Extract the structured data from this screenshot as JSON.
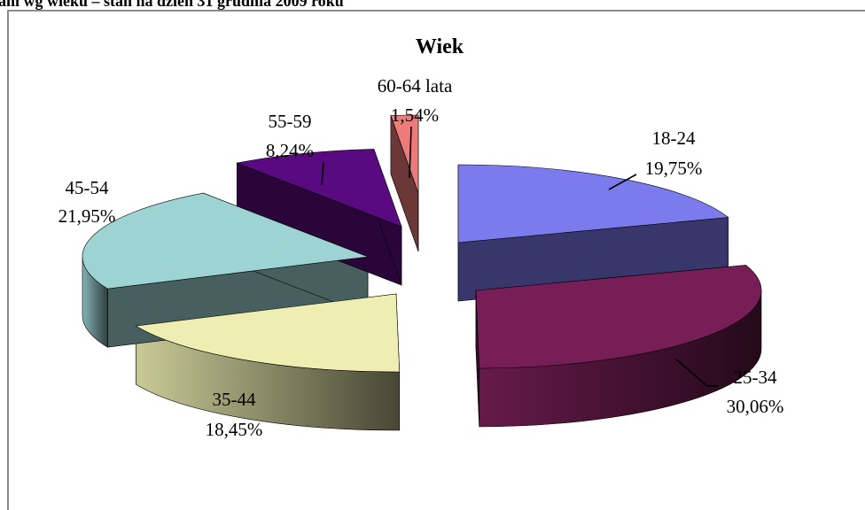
{
  "page": {
    "heading": "ani wg wieku – stan na dzień 31 grudnia 2009 roku"
  },
  "chart_data": {
    "type": "pie",
    "title": "Wiek",
    "exploded": true,
    "three_d": true,
    "slices": [
      {
        "label": "18-24",
        "percent_label": "19,75%",
        "value": 19.75,
        "color": "#7b7bee"
      },
      {
        "label": "25-34",
        "percent_label": "30,06%",
        "value": 30.06,
        "color": "#781e57"
      },
      {
        "label": "35-44",
        "percent_label": "18,45%",
        "value": 18.45,
        "color": "#eeeeb2"
      },
      {
        "label": "45-54",
        "percent_label": "21,95%",
        "value": 21.95,
        "color": "#9dd3d3"
      },
      {
        "label": "55-59",
        "percent_label": "8,24%",
        "value": 8.24,
        "color": "#5a0a80"
      },
      {
        "label": "60-64 lata",
        "percent_label": "1,54%",
        "value": 1.54,
        "color": "#ee7b7b"
      }
    ]
  }
}
